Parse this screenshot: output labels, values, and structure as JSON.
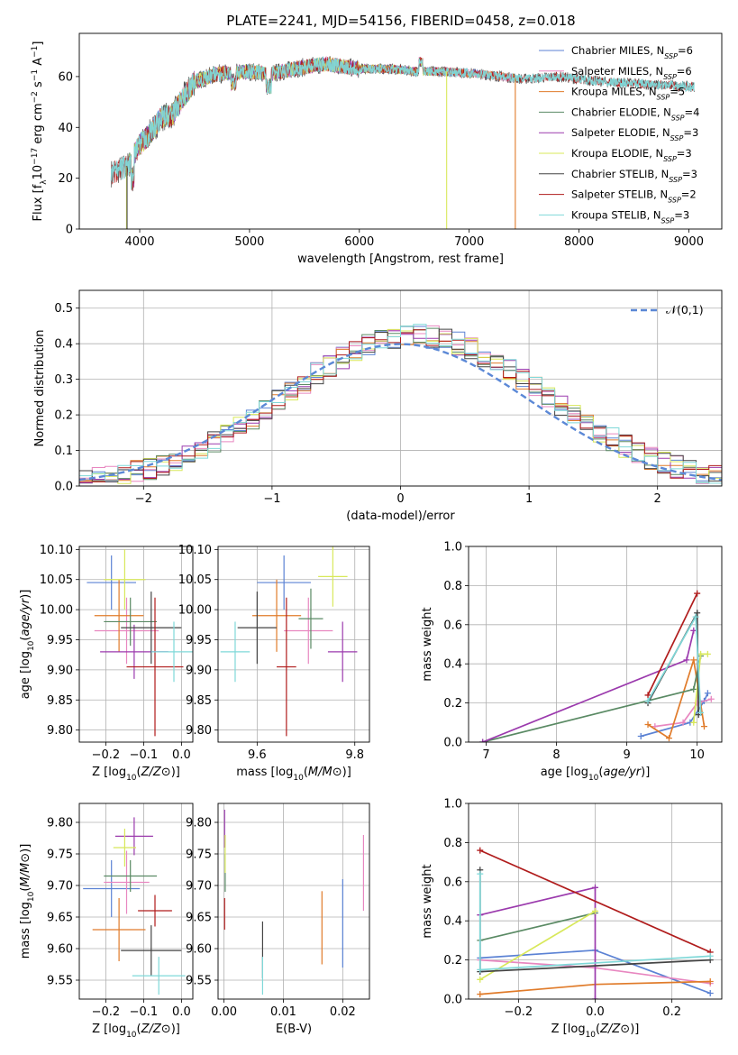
{
  "figure": {
    "title": "PLATE=2241, MJD=54156, FIBERID=0458, z=0.018"
  },
  "colors": {
    "Chabrier MILES": "#5b82d4",
    "Salpeter MILES": "#e887c0",
    "Kroupa MILES": "#e07b2a",
    "Chabrier ELODIE": "#5a8a64",
    "Salpeter ELODIE": "#9b3aad",
    "Kroupa ELODIE": "#d8e85a",
    "Chabrier STELIB": "#444444",
    "Salpeter STELIB": "#b01c1c",
    "Kroupa STELIB": "#7fd8d8"
  },
  "legend_spectrum": [
    {
      "model": "Chabrier MILES",
      "label": "Chabrier MILES, N",
      "sub": "SSP",
      "suffix": "=6"
    },
    {
      "model": "Salpeter MILES",
      "label": "Salpeter MILES, N",
      "sub": "SSP",
      "suffix": "=6"
    },
    {
      "model": "Kroupa MILES",
      "label": "Kroupa MILES, N",
      "sub": "SSP",
      "suffix": "=5"
    },
    {
      "model": "Chabrier ELODIE",
      "label": "Chabrier ELODIE, N",
      "sub": "SSP",
      "suffix": "=4"
    },
    {
      "model": "Salpeter ELODIE",
      "label": "Salpeter ELODIE, N",
      "sub": "SSP",
      "suffix": "=3"
    },
    {
      "model": "Kroupa ELODIE",
      "label": "Kroupa ELODIE, N",
      "sub": "SSP",
      "suffix": "=3"
    },
    {
      "model": "Chabrier STELIB",
      "label": "Chabrier STELIB, N",
      "sub": "SSP",
      "suffix": "=3"
    },
    {
      "model": "Salpeter STELIB",
      "label": "Salpeter STELIB, N",
      "sub": "SSP",
      "suffix": "=2"
    },
    {
      "model": "Kroupa STELIB",
      "label": "Kroupa STELIB, N",
      "sub": "SSP",
      "suffix": "=3"
    }
  ],
  "chart_data": [
    {
      "id": "spectrum",
      "type": "line",
      "xlabel": "wavelength [Angstrom, rest frame]",
      "ylabel": "Flux [f_λ 10^-17 erg cm^-2 s^-1 A^-1]",
      "xlim": [
        3450,
        9300
      ],
      "ylim": [
        0,
        77
      ],
      "xticks": [
        4000,
        5000,
        6000,
        7000,
        8000,
        9000
      ],
      "yticks": [
        0,
        20,
        40,
        60
      ],
      "grid": false,
      "legend": "top-right",
      "continuum": [
        [
          3750,
          22
        ],
        [
          3900,
          25
        ],
        [
          4000,
          33
        ],
        [
          4100,
          38
        ],
        [
          4200,
          44
        ],
        [
          4300,
          45
        ],
        [
          4400,
          52
        ],
        [
          4500,
          58
        ],
        [
          4700,
          61
        ],
        [
          5000,
          62
        ],
        [
          5200,
          61
        ],
        [
          5400,
          63
        ],
        [
          5700,
          65
        ],
        [
          6000,
          63
        ],
        [
          6300,
          63
        ],
        [
          6500,
          62
        ],
        [
          6800,
          62
        ],
        [
          7100,
          61
        ],
        [
          7500,
          59
        ],
        [
          7800,
          60
        ],
        [
          8200,
          58
        ],
        [
          8600,
          57
        ],
        [
          9000,
          56
        ]
      ],
      "dropouts": [
        {
          "model": "Kroupa ELODIE",
          "x": 3880,
          "y": 0
        },
        {
          "model": "Chabrier STELIB",
          "x": 3885,
          "y": 0
        },
        {
          "model": "Kroupa ELODIE",
          "x": 6795,
          "y": 0
        },
        {
          "model": "Kroupa MILES",
          "x": 7420,
          "y": 0
        }
      ]
    },
    {
      "id": "residuals",
      "type": "step",
      "xlabel": "(data-model)/error",
      "ylabel": "Normed distribution",
      "xlim": [
        -2.5,
        2.5
      ],
      "ylim": [
        0,
        0.55
      ],
      "xticks": [
        -2,
        -1,
        0,
        1,
        2
      ],
      "yticks": [
        0.0,
        0.1,
        0.2,
        0.3,
        0.4,
        0.5
      ],
      "grid": true,
      "legend": "top-right",
      "reference": {
        "label": "𝒩(0,1)",
        "mu": 0,
        "sigma": 1
      },
      "bins": {
        "start": -2.5,
        "width": 0.1,
        "count": 50
      }
    },
    {
      "id": "age_vs_Z",
      "type": "errorbar",
      "xlabel": "Z [log10(Z/Z⊙)]",
      "ylabel": "age  [log10(age/yr)]",
      "xlim": [
        -0.27,
        0.03
      ],
      "ylim": [
        9.78,
        10.105
      ],
      "xticks": [
        -0.2,
        -0.1,
        0.0
      ],
      "yticks": [
        9.8,
        9.85,
        9.9,
        9.95,
        10.0,
        10.05,
        10.1
      ],
      "grid": true,
      "points": [
        {
          "model": "Chabrier MILES",
          "x": -0.185,
          "xerr": 0.065,
          "y": 10.045,
          "yerr": 0.045
        },
        {
          "model": "Salpeter MILES",
          "x": -0.145,
          "xerr": 0.085,
          "y": 9.965,
          "yerr": 0.055
        },
        {
          "model": "Kroupa MILES",
          "x": -0.165,
          "xerr": 0.065,
          "y": 9.99,
          "yerr": 0.06
        },
        {
          "model": "Chabrier ELODIE",
          "x": -0.135,
          "xerr": 0.07,
          "y": 9.98,
          "yerr": 0.04
        },
        {
          "model": "Salpeter ELODIE",
          "x": -0.125,
          "xerr": 0.09,
          "y": 9.93,
          "yerr": 0.045
        },
        {
          "model": "Kroupa ELODIE",
          "x": -0.15,
          "xerr": 0.055,
          "y": 10.05,
          "yerr": 0.05
        },
        {
          "model": "Chabrier STELIB",
          "x": -0.08,
          "xerr": 0.08,
          "y": 9.97,
          "yerr": 0.06
        },
        {
          "model": "Salpeter STELIB",
          "x": -0.07,
          "xerr": 0.075,
          "y": 9.905,
          "yerr": 0.115
        },
        {
          "model": "Kroupa STELIB",
          "x": -0.02,
          "xerr": 0.06,
          "y": 9.93,
          "yerr": 0.05
        }
      ]
    },
    {
      "id": "age_vs_mass",
      "type": "errorbar",
      "xlabel": "mass [log10(M/M⊙)]",
      "ylabel": "",
      "xlim": [
        9.52,
        9.83
      ],
      "ylim": [
        9.78,
        10.105
      ],
      "xticks": [
        9.6,
        9.8
      ],
      "yticks": [
        9.8,
        9.85,
        9.9,
        9.95,
        10.0,
        10.05,
        10.1
      ],
      "grid": true,
      "points": [
        {
          "model": "Chabrier MILES",
          "x": 9.655,
          "xerr": 0.055,
          "y": 10.045,
          "yerr": 0.045
        },
        {
          "model": "Salpeter MILES",
          "x": 9.705,
          "xerr": 0.05,
          "y": 9.965,
          "yerr": 0.055
        },
        {
          "model": "Kroupa MILES",
          "x": 9.64,
          "xerr": 0.05,
          "y": 9.99,
          "yerr": 0.06
        },
        {
          "model": "Chabrier ELODIE",
          "x": 9.71,
          "xerr": 0.025,
          "y": 9.985,
          "yerr": 0.05
        },
        {
          "model": "Salpeter ELODIE",
          "x": 9.775,
          "xerr": 0.03,
          "y": 9.93,
          "yerr": 0.05
        },
        {
          "model": "Kroupa ELODIE",
          "x": 9.755,
          "xerr": 0.03,
          "y": 10.055,
          "yerr": 0.05
        },
        {
          "model": "Chabrier STELIB",
          "x": 9.6,
          "xerr": 0.04,
          "y": 9.97,
          "yerr": 0.06
        },
        {
          "model": "Salpeter STELIB",
          "x": 9.66,
          "xerr": 0.02,
          "y": 9.905,
          "yerr": 0.115
        },
        {
          "model": "Kroupa STELIB",
          "x": 9.555,
          "xerr": 0.03,
          "y": 9.93,
          "yerr": 0.05
        }
      ]
    },
    {
      "id": "weight_vs_age",
      "type": "line",
      "xlabel": "age  [log10(age/yr)]",
      "ylabel": "mass weight",
      "xlim": [
        6.75,
        10.35
      ],
      "ylim": [
        0,
        1
      ],
      "xticks": [
        7,
        8,
        9,
        10
      ],
      "yticks": [
        0.0,
        0.2,
        0.4,
        0.6,
        0.8,
        1.0
      ],
      "grid": true,
      "series": [
        {
          "model": "Chabrier MILES",
          "x": [
            9.2,
            9.9,
            10.1,
            10.15
          ],
          "y": [
            0.03,
            0.1,
            0.21,
            0.25
          ]
        },
        {
          "model": "Salpeter MILES",
          "x": [
            9.4,
            9.8,
            10.0,
            10.2
          ],
          "y": [
            0.08,
            0.1,
            0.2,
            0.22
          ]
        },
        {
          "model": "Kroupa MILES",
          "x": [
            9.3,
            9.6,
            9.95,
            10.1
          ],
          "y": [
            0.09,
            0.02,
            0.42,
            0.08
          ]
        },
        {
          "model": "Chabrier ELODIE",
          "x": [
            6.95,
            9.95,
            10.05
          ],
          "y": [
            0.0,
            0.27,
            0.44
          ]
        },
        {
          "model": "Salpeter ELODIE",
          "x": [
            6.95,
            9.85,
            9.95
          ],
          "y": [
            0.0,
            0.42,
            0.57
          ]
        },
        {
          "model": "Kroupa ELODIE",
          "x": [
            9.95,
            10.05,
            10.15
          ],
          "y": [
            0.1,
            0.45,
            0.45
          ]
        },
        {
          "model": "Chabrier STELIB",
          "x": [
            9.3,
            10.0,
            10.02
          ],
          "y": [
            0.2,
            0.66,
            0.14
          ]
        },
        {
          "model": "Salpeter STELIB",
          "x": [
            9.3,
            10.0
          ],
          "y": [
            0.24,
            0.76
          ]
        },
        {
          "model": "Kroupa STELIB",
          "x": [
            9.3,
            9.98,
            10.05
          ],
          "y": [
            0.21,
            0.64,
            0.15
          ]
        }
      ]
    },
    {
      "id": "mass_vs_Z",
      "type": "errorbar",
      "xlabel": "Z [log10(Z/Z⊙)]",
      "ylabel": "mass [log10(M/M⊙)]",
      "xlim": [
        -0.27,
        0.03
      ],
      "ylim": [
        9.52,
        9.83
      ],
      "xticks": [
        -0.2,
        -0.1,
        0.0
      ],
      "yticks": [
        9.55,
        9.6,
        9.65,
        9.7,
        9.75,
        9.8
      ],
      "grid": true,
      "points": [
        {
          "model": "Chabrier MILES",
          "x": -0.185,
          "xerr": 0.075,
          "y": 9.695,
          "yerr": 0.045
        },
        {
          "model": "Salpeter MILES",
          "x": -0.145,
          "xerr": 0.06,
          "y": 9.705,
          "yerr": 0.05
        },
        {
          "model": "Kroupa MILES",
          "x": -0.165,
          "xerr": 0.07,
          "y": 9.63,
          "yerr": 0.05
        },
        {
          "model": "Chabrier ELODIE",
          "x": -0.135,
          "xerr": 0.07,
          "y": 9.715,
          "yerr": 0.025
        },
        {
          "model": "Salpeter ELODIE",
          "x": -0.125,
          "xerr": 0.05,
          "y": 9.778,
          "yerr": 0.03
        },
        {
          "model": "Kroupa ELODIE",
          "x": -0.15,
          "xerr": 0.03,
          "y": 9.76,
          "yerr": 0.03
        },
        {
          "model": "Chabrier STELIB",
          "x": -0.08,
          "xerr": 0.08,
          "y": 9.597,
          "yerr": 0.04
        },
        {
          "model": "Salpeter STELIB",
          "x": -0.07,
          "xerr": 0.045,
          "y": 9.66,
          "yerr": 0.025
        },
        {
          "model": "Kroupa STELIB",
          "x": -0.06,
          "xerr": 0.07,
          "y": 9.557,
          "yerr": 0.03
        }
      ]
    },
    {
      "id": "mass_vs_ebv",
      "type": "errorbar",
      "xlabel": "E(B-V)",
      "ylabel": "",
      "xlim": [
        -0.001,
        0.0245
      ],
      "ylim": [
        9.52,
        9.83
      ],
      "xticks": [
        0.0,
        0.01,
        0.02
      ],
      "yticks": [
        9.55,
        9.6,
        9.65,
        9.7,
        9.75,
        9.8
      ],
      "grid": true,
      "points": [
        {
          "model": "Chabrier MILES",
          "x": 0.02,
          "xerr": 0,
          "y": 9.64,
          "yerr": 0.07
        },
        {
          "model": "Salpeter MILES",
          "x": 0.0235,
          "xerr": 0,
          "y": 9.72,
          "yerr": 0.06
        },
        {
          "model": "Kroupa MILES",
          "x": 0.0165,
          "xerr": 0,
          "y": 9.633,
          "yerr": 0.058
        },
        {
          "model": "Chabrier ELODIE",
          "x": 0.0002,
          "xerr": 0,
          "y": 9.72,
          "yerr": 0.03
        },
        {
          "model": "Salpeter ELODIE",
          "x": 0.0001,
          "xerr": 0,
          "y": 9.79,
          "yerr": 0.03
        },
        {
          "model": "Kroupa ELODIE",
          "x": 0.0002,
          "xerr": 0,
          "y": 9.75,
          "yerr": 0.03
        },
        {
          "model": "Chabrier STELIB",
          "x": 0.0065,
          "xerr": 0,
          "y": 9.598,
          "yerr": 0.045
        },
        {
          "model": "Salpeter STELIB",
          "x": 0.0001,
          "xerr": 0,
          "y": 9.655,
          "yerr": 0.025
        },
        {
          "model": "Kroupa STELIB",
          "x": 0.0065,
          "xerr": 0,
          "y": 9.557,
          "yerr": 0.03
        }
      ]
    },
    {
      "id": "weight_vs_Z",
      "type": "line",
      "xlabel": "Z [log10(Z/Z⊙)]",
      "ylabel": "mass weight",
      "xlim": [
        -0.33,
        0.33
      ],
      "ylim": [
        0,
        1
      ],
      "xticks": [
        -0.2,
        0.0,
        0.2
      ],
      "yticks": [
        0.0,
        0.2,
        0.4,
        0.6,
        0.8,
        1.0
      ],
      "grid": true,
      "series": [
        {
          "model": "Chabrier MILES",
          "x": [
            -0.3,
            0.0,
            0.3
          ],
          "y": [
            0.21,
            0.25,
            0.03
          ]
        },
        {
          "model": "Salpeter MILES",
          "x": [
            -0.3,
            0.0,
            0.3
          ],
          "y": [
            0.2,
            0.16,
            0.08
          ]
        },
        {
          "model": "Kroupa MILES",
          "x": [
            -0.3,
            0.0,
            0.3
          ],
          "y": [
            0.025,
            0.075,
            0.09
          ]
        },
        {
          "model": "Chabrier ELODIE",
          "x": [
            -0.3,
            0.0
          ],
          "y": [
            0.3,
            0.44
          ]
        },
        {
          "model": "Salpeter ELODIE",
          "x": [
            -0.3,
            0.0,
            0.0
          ],
          "y": [
            0.43,
            0.57,
            0.0
          ]
        },
        {
          "model": "Kroupa ELODIE",
          "x": [
            -0.3,
            0.0
          ],
          "y": [
            0.1,
            0.45
          ]
        },
        {
          "model": "Chabrier STELIB",
          "x": [
            -0.3,
            -0.3,
            0.3
          ],
          "y": [
            0.66,
            0.14,
            0.2
          ]
        },
        {
          "model": "Salpeter STELIB",
          "x": [
            -0.3,
            0.3
          ],
          "y": [
            0.76,
            0.24
          ]
        },
        {
          "model": "Kroupa STELIB",
          "x": [
            -0.3,
            -0.3,
            0.3
          ],
          "y": [
            0.64,
            0.15,
            0.22
          ]
        }
      ]
    }
  ]
}
